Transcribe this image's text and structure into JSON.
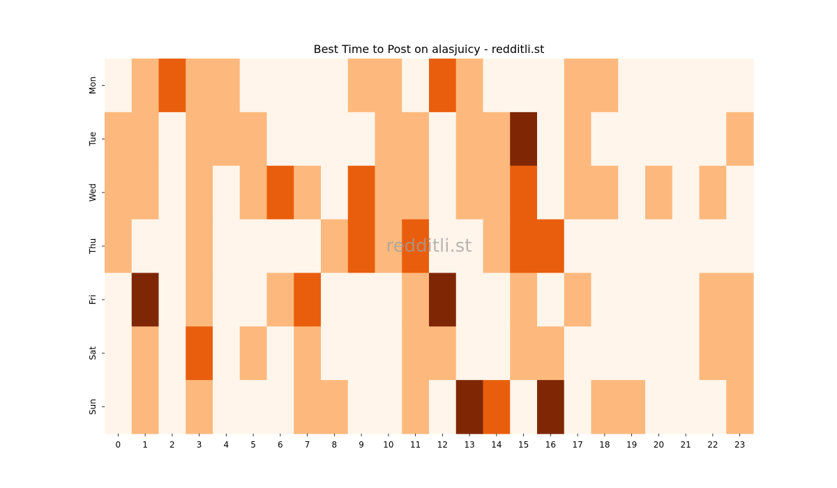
{
  "chart_data": {
    "type": "heatmap",
    "title": "Best Time to Post on alasjuicy - redditli.st",
    "watermark": "redditli.st",
    "xlabel": "",
    "ylabel": "",
    "x_categories": [
      "0",
      "1",
      "2",
      "3",
      "4",
      "5",
      "6",
      "7",
      "8",
      "9",
      "10",
      "11",
      "12",
      "13",
      "14",
      "15",
      "16",
      "17",
      "18",
      "19",
      "20",
      "21",
      "22",
      "23"
    ],
    "y_categories": [
      "Mon",
      "Tue",
      "Wed",
      "Thu",
      "Fri",
      "Sat",
      "Sun"
    ],
    "colorbar": false,
    "levels": [
      0,
      1,
      2,
      3
    ],
    "level_colors": [
      "#fff5eb",
      "#fdb97d",
      "#e95e0d",
      "#7f2704"
    ],
    "values": [
      [
        0,
        1,
        2,
        1,
        1,
        0,
        0,
        0,
        0,
        1,
        1,
        0,
        2,
        1,
        0,
        0,
        0,
        1,
        1,
        0,
        0,
        0,
        0,
        0
      ],
      [
        1,
        1,
        0,
        1,
        1,
        1,
        0,
        0,
        0,
        0,
        1,
        1,
        0,
        1,
        1,
        3,
        0,
        1,
        0,
        0,
        0,
        0,
        0,
        1
      ],
      [
        1,
        1,
        0,
        1,
        0,
        1,
        2,
        1,
        0,
        2,
        1,
        1,
        0,
        1,
        1,
        2,
        0,
        1,
        1,
        0,
        1,
        0,
        1,
        0
      ],
      [
        1,
        0,
        0,
        1,
        0,
        0,
        0,
        0,
        1,
        2,
        1,
        2,
        0,
        0,
        1,
        2,
        2,
        0,
        0,
        0,
        0,
        0,
        0,
        0
      ],
      [
        0,
        3,
        0,
        1,
        0,
        0,
        1,
        2,
        0,
        0,
        0,
        1,
        3,
        0,
        0,
        1,
        0,
        1,
        0,
        0,
        0,
        0,
        1,
        1
      ],
      [
        0,
        1,
        0,
        2,
        0,
        1,
        0,
        1,
        0,
        0,
        0,
        1,
        1,
        0,
        0,
        1,
        1,
        0,
        0,
        0,
        0,
        0,
        1,
        1
      ],
      [
        0,
        1,
        0,
        1,
        0,
        0,
        0,
        1,
        1,
        0,
        0,
        1,
        0,
        3,
        2,
        0,
        3,
        0,
        1,
        1,
        0,
        0,
        0,
        1
      ]
    ]
  }
}
